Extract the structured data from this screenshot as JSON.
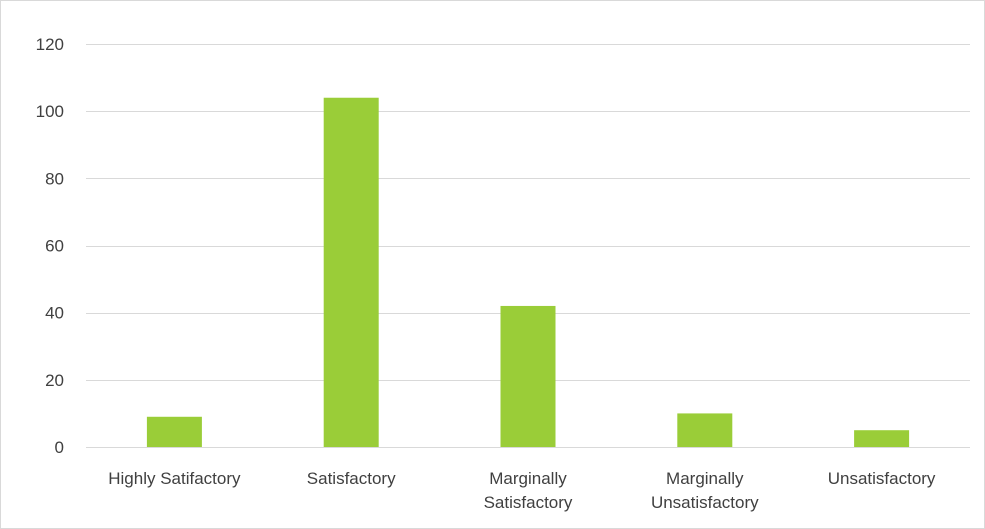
{
  "chart_data": {
    "type": "bar",
    "categories": [
      "Highly Satifactory",
      "Satisfactory",
      "Marginally Satisfactory",
      "Marginally Unsatisfactory",
      "Unsatisfactory"
    ],
    "category_lines": [
      [
        "Highly Satifactory"
      ],
      [
        "Satisfactory"
      ],
      [
        "Marginally",
        "Satisfactory"
      ],
      [
        "Marginally",
        "Unsatisfactory"
      ],
      [
        "Unsatisfactory"
      ]
    ],
    "values": [
      9,
      104,
      42,
      10,
      5
    ],
    "title": "",
    "xlabel": "",
    "ylabel": "",
    "ylim": [
      0,
      120
    ],
    "yticks": [
      0,
      20,
      40,
      60,
      80,
      100,
      120
    ],
    "grid": true,
    "legend": "none",
    "colors": {
      "bar": "#9acd38",
      "grid": "#d9d9d9",
      "text": "#404040",
      "frame": "#d9d9d9"
    }
  }
}
